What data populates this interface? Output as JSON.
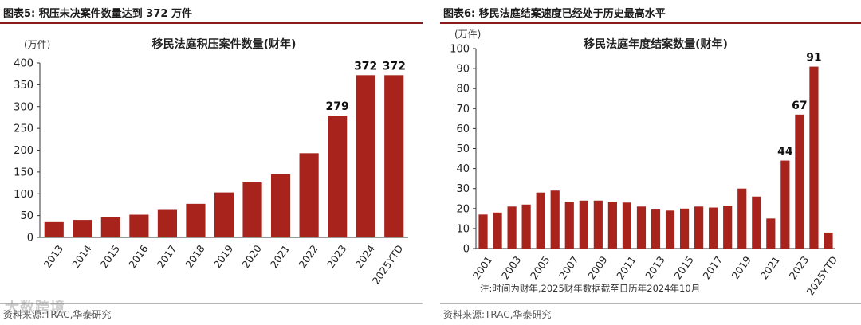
{
  "charts": {
    "left": {
      "fig_title": "图表5:  积压未决案件数量达到 372 万件",
      "source": "资料来源:TRAC,华泰研究",
      "chart_data": {
        "type": "bar",
        "title": "移民法庭积压案件数量(财年)",
        "ylabel": "(万件)",
        "xlabel": "",
        "ylim": [
          0,
          400
        ],
        "yticks": [
          0,
          50,
          100,
          150,
          200,
          250,
          300,
          350,
          400
        ],
        "categories": [
          "2013",
          "2014",
          "2015",
          "2016",
          "2017",
          "2018",
          "2019",
          "2020",
          "2021",
          "2022",
          "2023",
          "2024",
          "2025YTD"
        ],
        "values": [
          35,
          40,
          46,
          52,
          63,
          77,
          103,
          126,
          145,
          193,
          279,
          372,
          372
        ],
        "data_labels": [
          null,
          null,
          null,
          null,
          null,
          null,
          null,
          null,
          null,
          null,
          "279",
          "372",
          "372"
        ],
        "bar_color": "#a8231c"
      }
    },
    "right": {
      "fig_title": "图表6:  移民法庭结案速度已经处于历史最高水平",
      "source": "资料来源:TRAC,华泰研究",
      "note": "注:时间为财年,2025财年数据截至日历年2024年10月",
      "chart_data": {
        "type": "bar",
        "title": "移民法庭年度结案数量(财年)",
        "ylabel": "(万件)",
        "xlabel": "",
        "ylim": [
          0,
          100
        ],
        "yticks": [
          0,
          10,
          20,
          30,
          40,
          50,
          60,
          70,
          80,
          90,
          100
        ],
        "categories": [
          "2001",
          "2002",
          "2003",
          "2004",
          "2005",
          "2006",
          "2007",
          "2008",
          "2009",
          "2010",
          "2011",
          "2012",
          "2013",
          "2014",
          "2015",
          "2016",
          "2017",
          "2018",
          "2019",
          "2020",
          "2021",
          "2022",
          "2023",
          "2024",
          "2025YTD"
        ],
        "tick_labels": [
          "2001",
          "",
          "2003",
          "",
          "2005",
          "",
          "2007",
          "",
          "2009",
          "",
          "2011",
          "",
          "2013",
          "",
          "2015",
          "",
          "2017",
          "",
          "2019",
          "",
          "2021",
          "",
          "2023",
          "",
          "2025YTD"
        ],
        "values": [
          17,
          18,
          21,
          22,
          28,
          29,
          23.5,
          24,
          24,
          23.5,
          23,
          21,
          19.5,
          19,
          20,
          21,
          20.5,
          21.5,
          30,
          26,
          15,
          44,
          67,
          91,
          8
        ],
        "data_labels": [
          null,
          null,
          null,
          null,
          null,
          null,
          null,
          null,
          null,
          null,
          null,
          null,
          null,
          null,
          null,
          null,
          null,
          null,
          null,
          null,
          null,
          "44",
          "67",
          "91",
          null
        ],
        "bar_color": "#a8231c"
      }
    }
  },
  "watermark": "大数跨境"
}
